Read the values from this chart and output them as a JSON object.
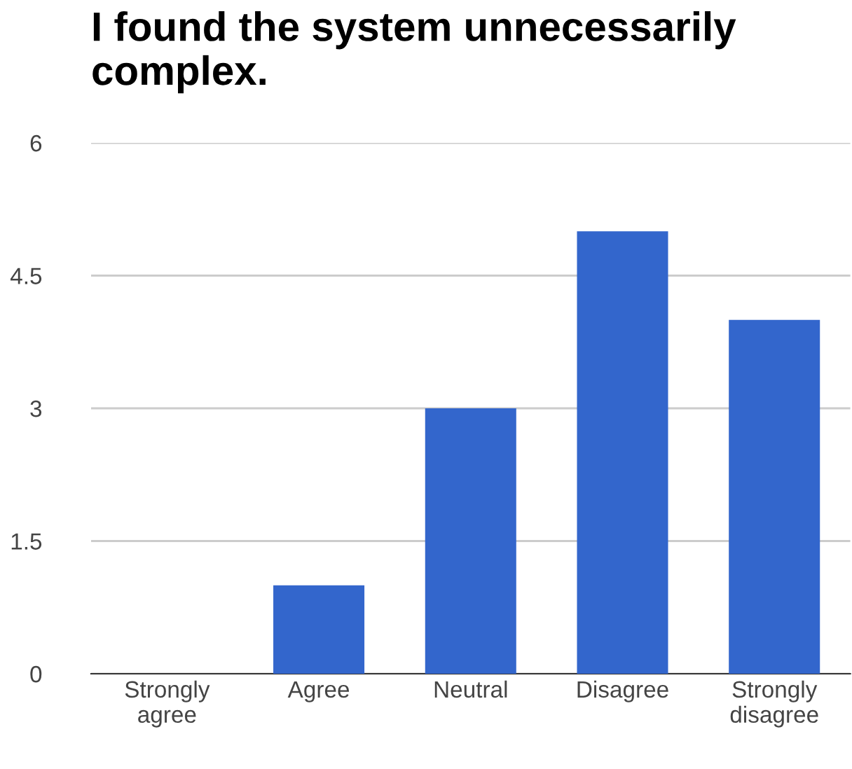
{
  "chart_data": {
    "type": "bar",
    "title": "I found the system unnecessarily complex.",
    "categories": [
      "Strongly agree",
      "Agree",
      "Neutral",
      "Disagree",
      "Strongly disagree"
    ],
    "values": [
      0,
      1,
      3,
      5,
      4
    ],
    "color": "#3366cc",
    "ylim": [
      0,
      6
    ],
    "yticks": [
      0,
      1.5,
      3,
      4.5,
      6
    ],
    "grid": "y"
  }
}
